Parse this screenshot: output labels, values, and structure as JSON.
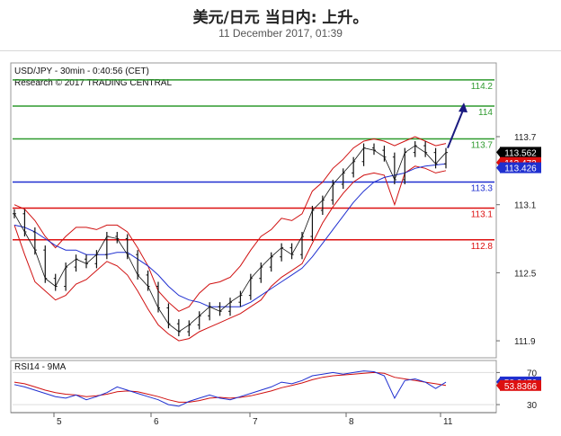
{
  "header": {
    "title": "美元/日元 当日内: 上升。",
    "subtitle": "11 December 2017, 01:39"
  },
  "chart_data": {
    "type": "line",
    "title": "USD/JPY - 30min - 0:40:56 (CET)",
    "credit": "Research © 2017 TRADING CENTRAL",
    "x_ticks": [
      "5",
      "6",
      "7",
      "8",
      "11"
    ],
    "y_ticks": [
      "113.7",
      "113.1",
      "112.5",
      "111.9"
    ],
    "ylim": [
      111.75,
      114.35
    ],
    "levels": [
      {
        "label": "114.2",
        "value": 114.2,
        "color": "#2e9a2e"
      },
      {
        "label": "114",
        "value": 113.97,
        "color": "#2e9a2e"
      },
      {
        "label": "113.7",
        "value": 113.68,
        "color": "#2e9a2e"
      },
      {
        "label": "113.3",
        "value": 113.3,
        "color": "#1f2fd0"
      },
      {
        "label": "113.1",
        "value": 113.07,
        "color": "#dd1010"
      },
      {
        "label": "112.8",
        "value": 112.79,
        "color": "#dd1010"
      }
    ],
    "price_tags": [
      {
        "label": "113.562",
        "value": 113.562,
        "color": "#000000"
      },
      {
        "label": "113.472",
        "value": 113.472,
        "color": "#dd1010"
      },
      {
        "label": "113.426",
        "value": 113.426,
        "color": "#1f2fd0"
      }
    ],
    "price_series": [
      113.02,
      112.86,
      112.7,
      112.45,
      112.38,
      112.55,
      112.62,
      112.58,
      112.66,
      112.82,
      112.8,
      112.66,
      112.48,
      112.38,
      112.19,
      112.05,
      111.98,
      112.04,
      112.12,
      112.2,
      112.16,
      112.24,
      112.3,
      112.45,
      112.55,
      112.64,
      112.72,
      112.66,
      112.82,
      113.05,
      113.14,
      113.28,
      113.38,
      113.48,
      113.6,
      113.58,
      113.52,
      113.32,
      113.56,
      113.62,
      113.56,
      113.46,
      113.56
    ],
    "bb_upper": [
      113.1,
      113.06,
      112.96,
      112.82,
      112.72,
      112.82,
      112.9,
      112.9,
      112.88,
      112.92,
      112.92,
      112.86,
      112.72,
      112.56,
      112.34,
      112.24,
      112.16,
      112.2,
      112.32,
      112.4,
      112.42,
      112.46,
      112.56,
      112.7,
      112.82,
      112.88,
      112.98,
      112.96,
      113.02,
      113.22,
      113.3,
      113.42,
      113.5,
      113.6,
      113.66,
      113.68,
      113.66,
      113.62,
      113.66,
      113.7,
      113.66,
      113.62,
      113.64
    ],
    "bb_lower": [
      112.92,
      112.66,
      112.42,
      112.34,
      112.26,
      112.3,
      112.4,
      112.44,
      112.52,
      112.6,
      112.56,
      112.48,
      112.34,
      112.18,
      112.04,
      111.96,
      111.9,
      111.92,
      111.98,
      112.02,
      112.06,
      112.1,
      112.14,
      112.2,
      112.26,
      112.38,
      112.46,
      112.52,
      112.58,
      112.76,
      112.94,
      113.08,
      113.2,
      113.3,
      113.36,
      113.38,
      113.36,
      113.1,
      113.38,
      113.44,
      113.42,
      113.38,
      113.4
    ],
    "ma_series": [
      112.92,
      112.9,
      112.86,
      112.8,
      112.74,
      112.7,
      112.7,
      112.66,
      112.66,
      112.66,
      112.68,
      112.68,
      112.62,
      112.56,
      112.48,
      112.38,
      112.3,
      112.26,
      112.24,
      112.2,
      112.2,
      112.2,
      112.2,
      112.24,
      112.3,
      112.36,
      112.42,
      112.48,
      112.54,
      112.64,
      112.76,
      112.88,
      113.0,
      113.12,
      113.22,
      113.3,
      113.34,
      113.36,
      113.38,
      113.42,
      113.44,
      113.45,
      113.46
    ],
    "forecast_arrow": {
      "from": 113.6,
      "to": 114.0
    },
    "rsi": {
      "title": "RSI14 - 9MA",
      "y_ticks": [
        "70",
        "30"
      ],
      "ylim": [
        20,
        85
      ],
      "tags": [
        {
          "label": "58.2476",
          "value": 58.2476,
          "color": "#1f2fd0"
        },
        {
          "label": "53.8366",
          "value": 53.8366,
          "color": "#dd1010"
        }
      ],
      "rsi_series": [
        55,
        52,
        48,
        44,
        40,
        38,
        42,
        36,
        40,
        45,
        52,
        48,
        44,
        40,
        36,
        30,
        28,
        34,
        38,
        42,
        38,
        36,
        40,
        44,
        48,
        52,
        58,
        56,
        60,
        66,
        68,
        70,
        68,
        70,
        72,
        71,
        66,
        38,
        60,
        62,
        58,
        50,
        58
      ],
      "ma_series": [
        58,
        56,
        52,
        48,
        45,
        43,
        42,
        40,
        41,
        43,
        46,
        47,
        46,
        43,
        40,
        36,
        33,
        33,
        35,
        38,
        39,
        38,
        39,
        41,
        44,
        47,
        51,
        54,
        57,
        61,
        64,
        66,
        67,
        68,
        69,
        70,
        69,
        64,
        62,
        60,
        58,
        56,
        54
      ]
    }
  }
}
